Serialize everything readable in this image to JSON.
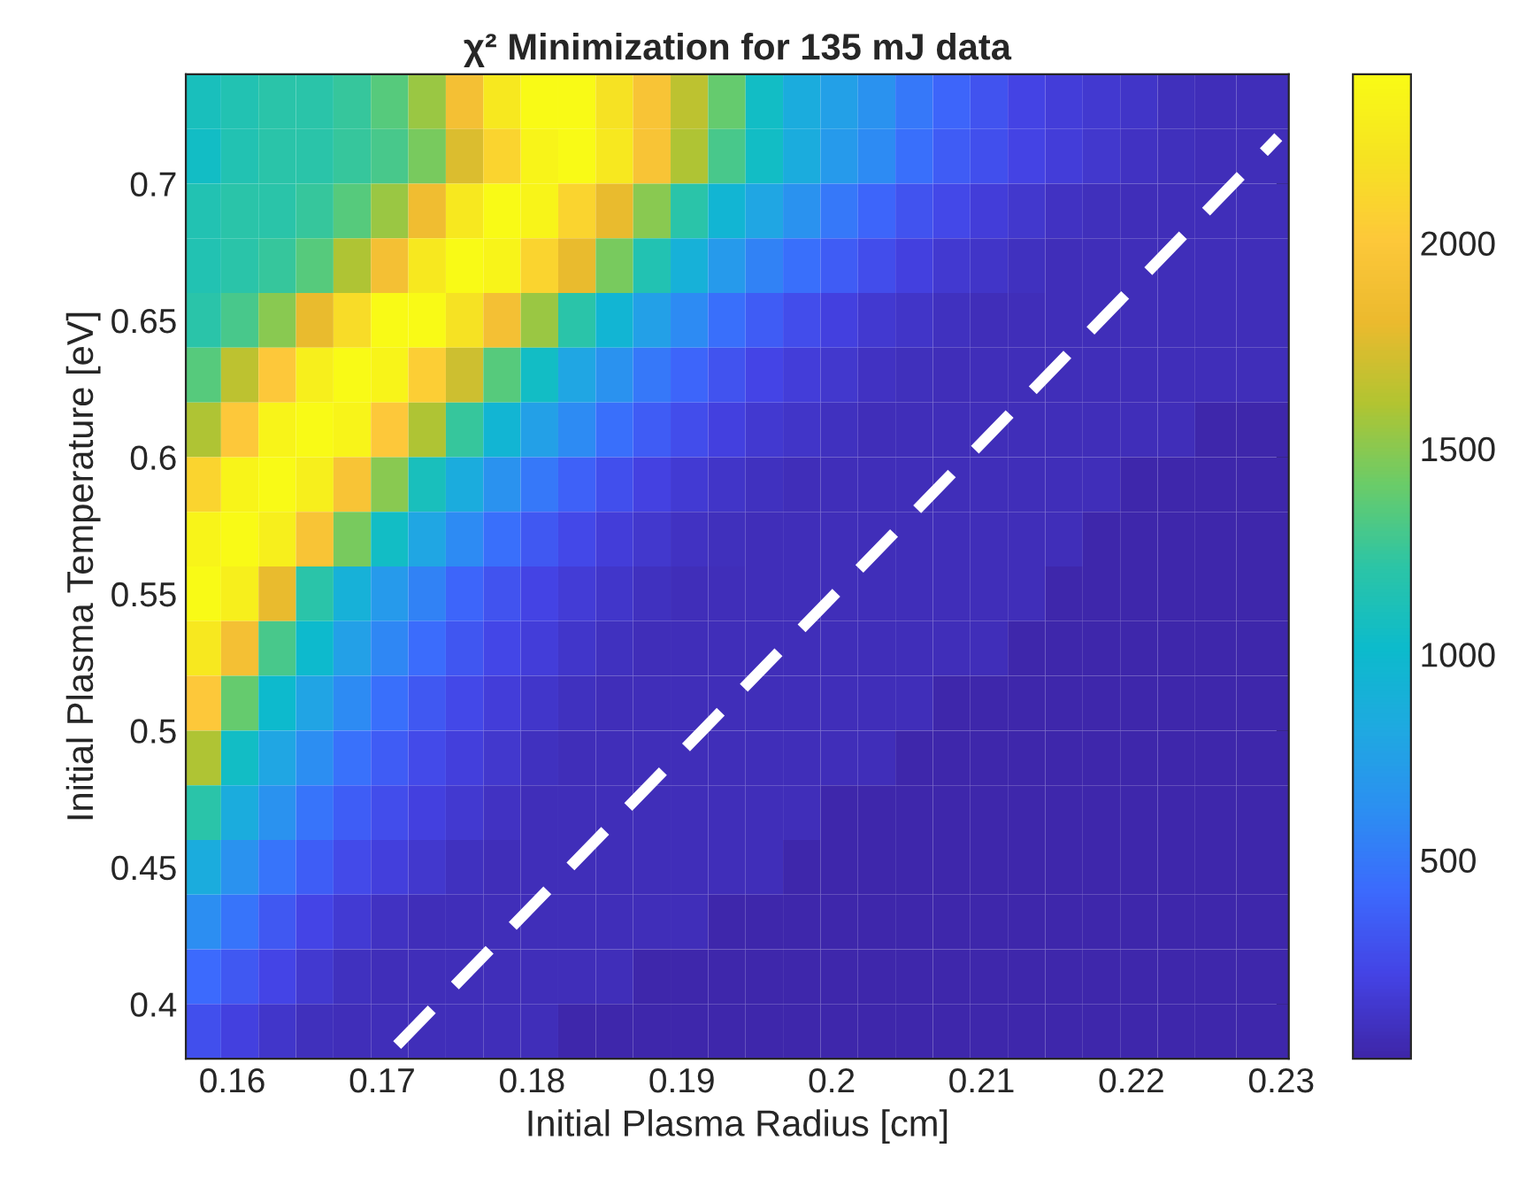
{
  "chart_data": {
    "type": "heatmap",
    "title": "χ² Minimization for 135 mJ data",
    "xlabel": "Initial Plasma Radius [cm]",
    "ylabel": "Initial Plasma Temperature [eV]",
    "x": [
      0.158,
      0.1605,
      0.163,
      0.1655,
      0.168,
      0.1705,
      0.173,
      0.1755,
      0.178,
      0.1805,
      0.183,
      0.1855,
      0.188,
      0.1905,
      0.193,
      0.1955,
      0.198,
      0.2005,
      0.203,
      0.2055,
      0.208,
      0.2105,
      0.213,
      0.2155,
      0.218,
      0.2205,
      0.223,
      0.2255,
      0.2285
    ],
    "y": [
      0.73,
      0.71,
      0.69,
      0.67,
      0.65,
      0.63,
      0.61,
      0.59,
      0.57,
      0.55,
      0.53,
      0.51,
      0.49,
      0.47,
      0.45,
      0.43,
      0.41,
      0.39
    ],
    "cells": [
      [
        1100,
        1150,
        1200,
        1200,
        1250,
        1350,
        1550,
        1900,
        2250,
        2400,
        2400,
        2200,
        1950,
        1650,
        1400,
        1050,
        850,
        750,
        650,
        500,
        400,
        300,
        220,
        180,
        150,
        120,
        90,
        80,
        80
      ],
      [
        1050,
        1150,
        1200,
        1200,
        1250,
        1300,
        1450,
        1750,
        2100,
        2350,
        2400,
        2250,
        1950,
        1600,
        1300,
        1050,
        850,
        700,
        600,
        450,
        350,
        280,
        220,
        180,
        140,
        110,
        90,
        80,
        80
      ],
      [
        1150,
        1200,
        1200,
        1250,
        1350,
        1550,
        1850,
        2250,
        2400,
        2350,
        2100,
        1800,
        1500,
        1200,
        950,
        800,
        650,
        500,
        400,
        300,
        250,
        180,
        140,
        110,
        90,
        80,
        80,
        80,
        80
      ],
      [
        1150,
        1200,
        1250,
        1350,
        1600,
        1900,
        2250,
        2400,
        2350,
        2100,
        1800,
        1450,
        1150,
        900,
        700,
        550,
        450,
        350,
        270,
        200,
        150,
        120,
        100,
        80,
        80,
        80,
        80,
        80,
        80
      ],
      [
        1200,
        1300,
        1500,
        1800,
        2150,
        2400,
        2400,
        2200,
        1900,
        1550,
        1200,
        950,
        750,
        600,
        450,
        350,
        270,
        200,
        150,
        120,
        100,
        80,
        80,
        80,
        80,
        80,
        80,
        80,
        80
      ],
      [
        1350,
        1650,
        2000,
        2300,
        2400,
        2350,
        2050,
        1700,
        1350,
        1050,
        800,
        650,
        500,
        400,
        300,
        230,
        180,
        140,
        110,
        90,
        80,
        80,
        80,
        80,
        80,
        80,
        80,
        80,
        80
      ],
      [
        1600,
        2000,
        2350,
        2400,
        2350,
        2000,
        1600,
        1250,
        950,
        750,
        600,
        450,
        350,
        270,
        200,
        150,
        120,
        100,
        80,
        80,
        80,
        80,
        80,
        80,
        80,
        80,
        80,
        30,
        30
      ],
      [
        2100,
        2350,
        2400,
        2300,
        1950,
        1500,
        1100,
        850,
        650,
        500,
        380,
        280,
        210,
        160,
        120,
        100,
        80,
        80,
        80,
        80,
        80,
        80,
        80,
        80,
        80,
        30,
        30,
        30,
        30
      ],
      [
        2350,
        2400,
        2300,
        1950,
        1450,
        1050,
        800,
        600,
        450,
        330,
        250,
        180,
        140,
        110,
        90,
        80,
        80,
        80,
        80,
        80,
        80,
        80,
        80,
        80,
        30,
        30,
        30,
        30,
        30
      ],
      [
        2400,
        2300,
        1800,
        1200,
        900,
        700,
        550,
        400,
        300,
        220,
        170,
        130,
        100,
        80,
        80,
        80,
        80,
        80,
        80,
        80,
        80,
        80,
        80,
        30,
        30,
        30,
        30,
        30,
        30
      ],
      [
        2250,
        1900,
        1300,
        1000,
        750,
        580,
        430,
        320,
        240,
        180,
        130,
        100,
        80,
        80,
        80,
        80,
        80,
        80,
        80,
        80,
        80,
        80,
        30,
        30,
        30,
        30,
        30,
        30,
        30
      ],
      [
        2000,
        1400,
        1000,
        780,
        600,
        450,
        330,
        250,
        180,
        130,
        100,
        80,
        80,
        80,
        80,
        80,
        80,
        80,
        80,
        80,
        30,
        30,
        30,
        30,
        30,
        30,
        30,
        30,
        30
      ],
      [
        1600,
        1050,
        800,
        620,
        460,
        350,
        260,
        190,
        140,
        100,
        80,
        80,
        80,
        80,
        80,
        80,
        80,
        80,
        80,
        30,
        30,
        30,
        30,
        30,
        30,
        30,
        30,
        30,
        30
      ],
      [
        1200,
        850,
        650,
        480,
        360,
        270,
        200,
        150,
        110,
        80,
        80,
        80,
        80,
        80,
        80,
        80,
        80,
        30,
        30,
        30,
        30,
        30,
        30,
        30,
        30,
        30,
        30,
        30,
        30
      ],
      [
        850,
        650,
        480,
        360,
        260,
        190,
        140,
        100,
        80,
        80,
        80,
        80,
        80,
        80,
        80,
        80,
        30,
        30,
        30,
        30,
        30,
        30,
        30,
        30,
        30,
        30,
        30,
        30,
        30
      ],
      [
        620,
        480,
        330,
        230,
        160,
        110,
        80,
        80,
        80,
        80,
        80,
        80,
        80,
        80,
        30,
        30,
        30,
        30,
        30,
        30,
        30,
        30,
        30,
        30,
        30,
        30,
        30,
        30,
        30
      ],
      [
        420,
        330,
        230,
        150,
        100,
        80,
        80,
        80,
        80,
        80,
        80,
        80,
        30,
        30,
        30,
        30,
        30,
        30,
        30,
        30,
        30,
        30,
        30,
        30,
        30,
        30,
        30,
        30,
        30
      ],
      [
        280,
        200,
        130,
        90,
        80,
        80,
        80,
        80,
        80,
        80,
        30,
        30,
        30,
        30,
        30,
        30,
        30,
        30,
        30,
        30,
        30,
        30,
        30,
        30,
        30,
        30,
        30,
        30,
        30
      ]
    ],
    "series": [
      {
        "type": "line",
        "x": [
          0.171,
          0.2298
        ],
        "values": [
          0.385,
          0.717
        ],
        "color": "#ffffff",
        "line_style": "dashed"
      }
    ],
    "xlim": [
      0.1569,
      0.2305
    ],
    "ylim": [
      0.38,
      0.74
    ],
    "xticks": [
      0.16,
      0.17,
      0.18,
      0.19,
      0.2,
      0.21,
      0.22,
      0.23
    ],
    "yticks": [
      0.4,
      0.45,
      0.5,
      0.55,
      0.6,
      0.65,
      0.7
    ],
    "clim": [
      17,
      2410
    ],
    "cticks": [
      500,
      1000,
      1500,
      2000
    ],
    "grid": false
  }
}
